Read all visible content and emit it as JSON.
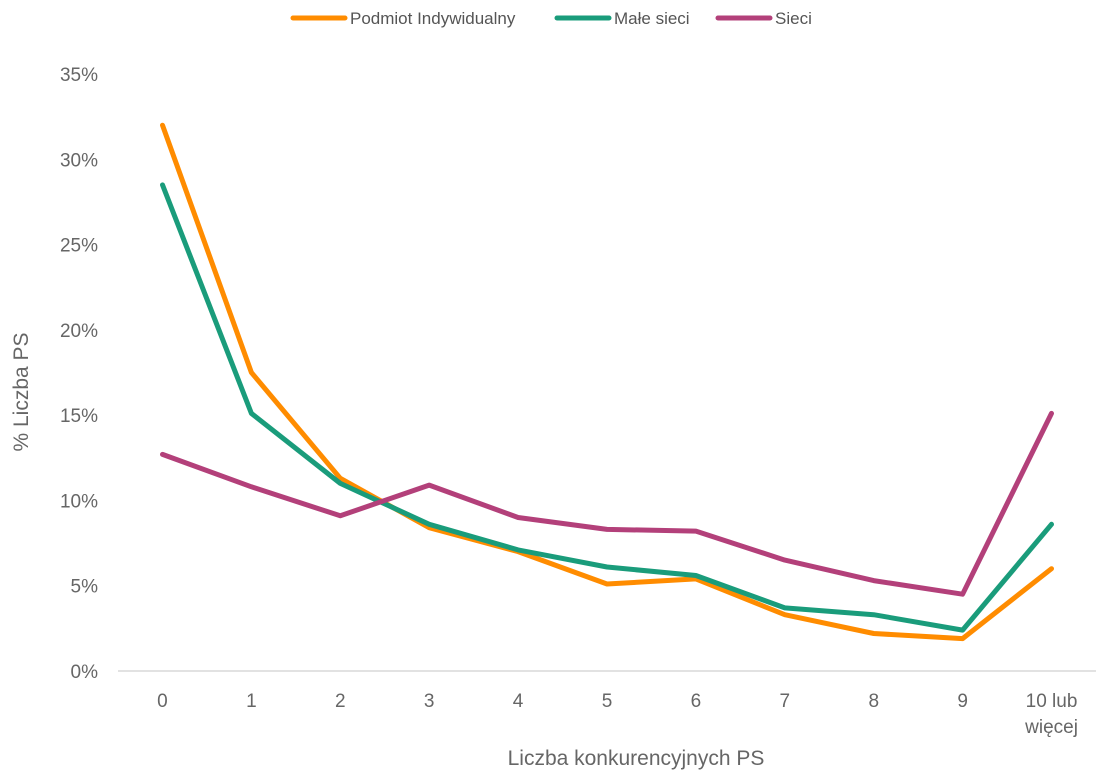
{
  "chart_data": {
    "type": "line",
    "xlabel": "Liczba konkurencyjnych PS",
    "ylabel": "% Liczba PS",
    "ylim": [
      0,
      35
    ],
    "yticks": [
      "0%",
      "5%",
      "10%",
      "15%",
      "20%",
      "25%",
      "30%",
      "35%"
    ],
    "categories": [
      [
        "0"
      ],
      [
        "1"
      ],
      [
        "2"
      ],
      [
        "3"
      ],
      [
        "4"
      ],
      [
        "5"
      ],
      [
        "6"
      ],
      [
        "7"
      ],
      [
        "8"
      ],
      [
        "9"
      ],
      [
        "10 lub",
        "więcej"
      ]
    ],
    "grid": false,
    "legend_position": "top-center",
    "series": [
      {
        "name": "Podmiot Indywidualny",
        "color": "#ff8c00",
        "values": [
          32.0,
          17.5,
          11.3,
          8.4,
          7.0,
          5.1,
          5.4,
          3.3,
          2.2,
          1.9,
          6.0
        ]
      },
      {
        "name": "Małe sieci",
        "color": "#1a9c7b",
        "values": [
          28.5,
          15.1,
          11.0,
          8.6,
          7.1,
          6.1,
          5.6,
          3.7,
          3.3,
          2.4,
          8.6
        ]
      },
      {
        "name": "Sieci",
        "color": "#b3407a",
        "values": [
          12.7,
          10.8,
          9.1,
          10.9,
          9.0,
          8.3,
          8.2,
          6.5,
          5.3,
          4.5,
          15.1
        ]
      }
    ]
  }
}
